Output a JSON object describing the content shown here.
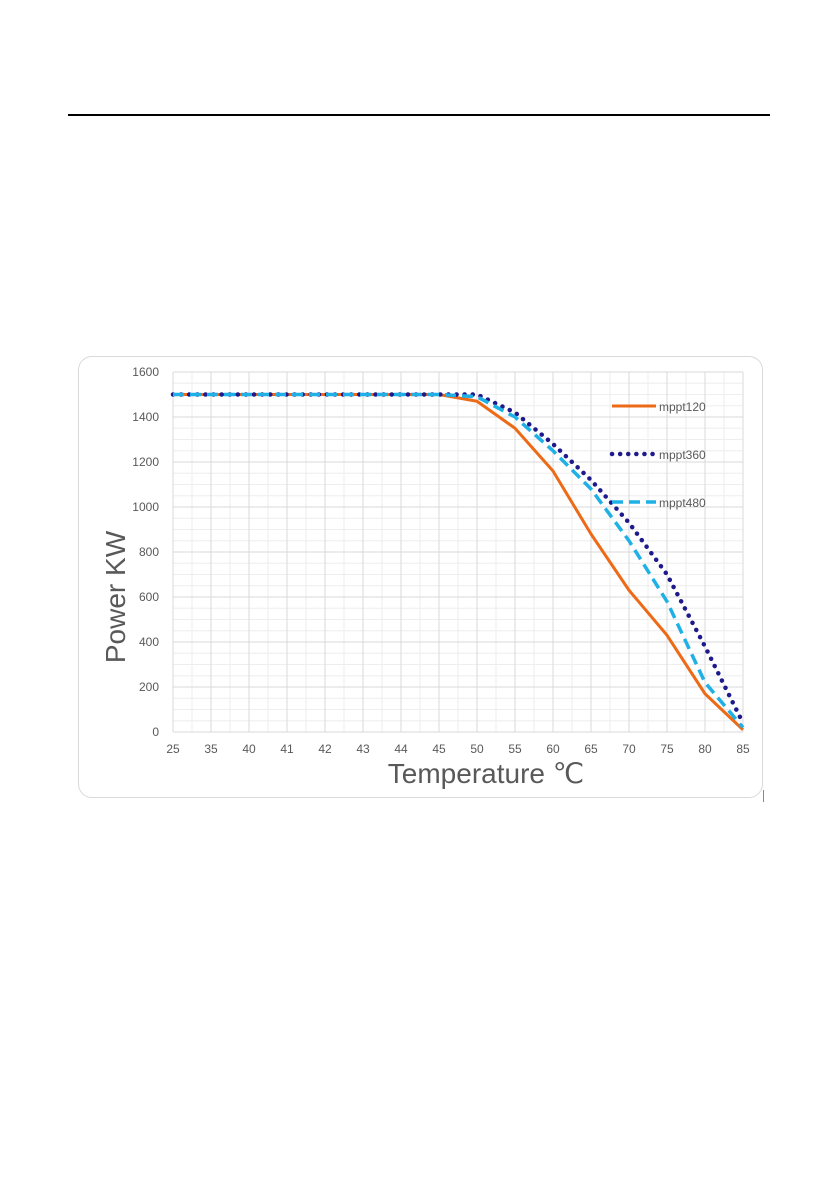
{
  "chart_data": {
    "type": "line",
    "categories": [
      "25",
      "35",
      "40",
      "41",
      "42",
      "43",
      "44",
      "45",
      "50",
      "55",
      "60",
      "65",
      "70",
      "75",
      "80",
      "85"
    ],
    "y_ticks": [
      "0",
      "200",
      "400",
      "600",
      "800",
      "1000",
      "1200",
      "1400",
      "1600"
    ],
    "ylim": [
      0,
      1600
    ],
    "xlabel": "Temperature ℃",
    "ylabel": "Power  KW",
    "grid": true,
    "legend_position": "top-right",
    "series": [
      {
        "name": "mppt120",
        "color": "#ed6a17",
        "style": "solid",
        "values": [
          1500,
          1500,
          1500,
          1500,
          1500,
          1500,
          1500,
          1500,
          1470,
          1350,
          1160,
          880,
          630,
          430,
          170,
          10
        ]
      },
      {
        "name": "mppt360",
        "color": "#1f1a8c",
        "style": "dotted",
        "values": [
          1500,
          1500,
          1500,
          1500,
          1500,
          1500,
          1500,
          1500,
          1500,
          1420,
          1280,
          1120,
          930,
          700,
          380,
          40
        ]
      },
      {
        "name": "mppt480",
        "color": "#1fb0e6",
        "style": "dashed",
        "values": [
          1500,
          1500,
          1500,
          1500,
          1500,
          1500,
          1500,
          1500,
          1490,
          1400,
          1250,
          1080,
          850,
          580,
          220,
          20
        ]
      }
    ]
  }
}
